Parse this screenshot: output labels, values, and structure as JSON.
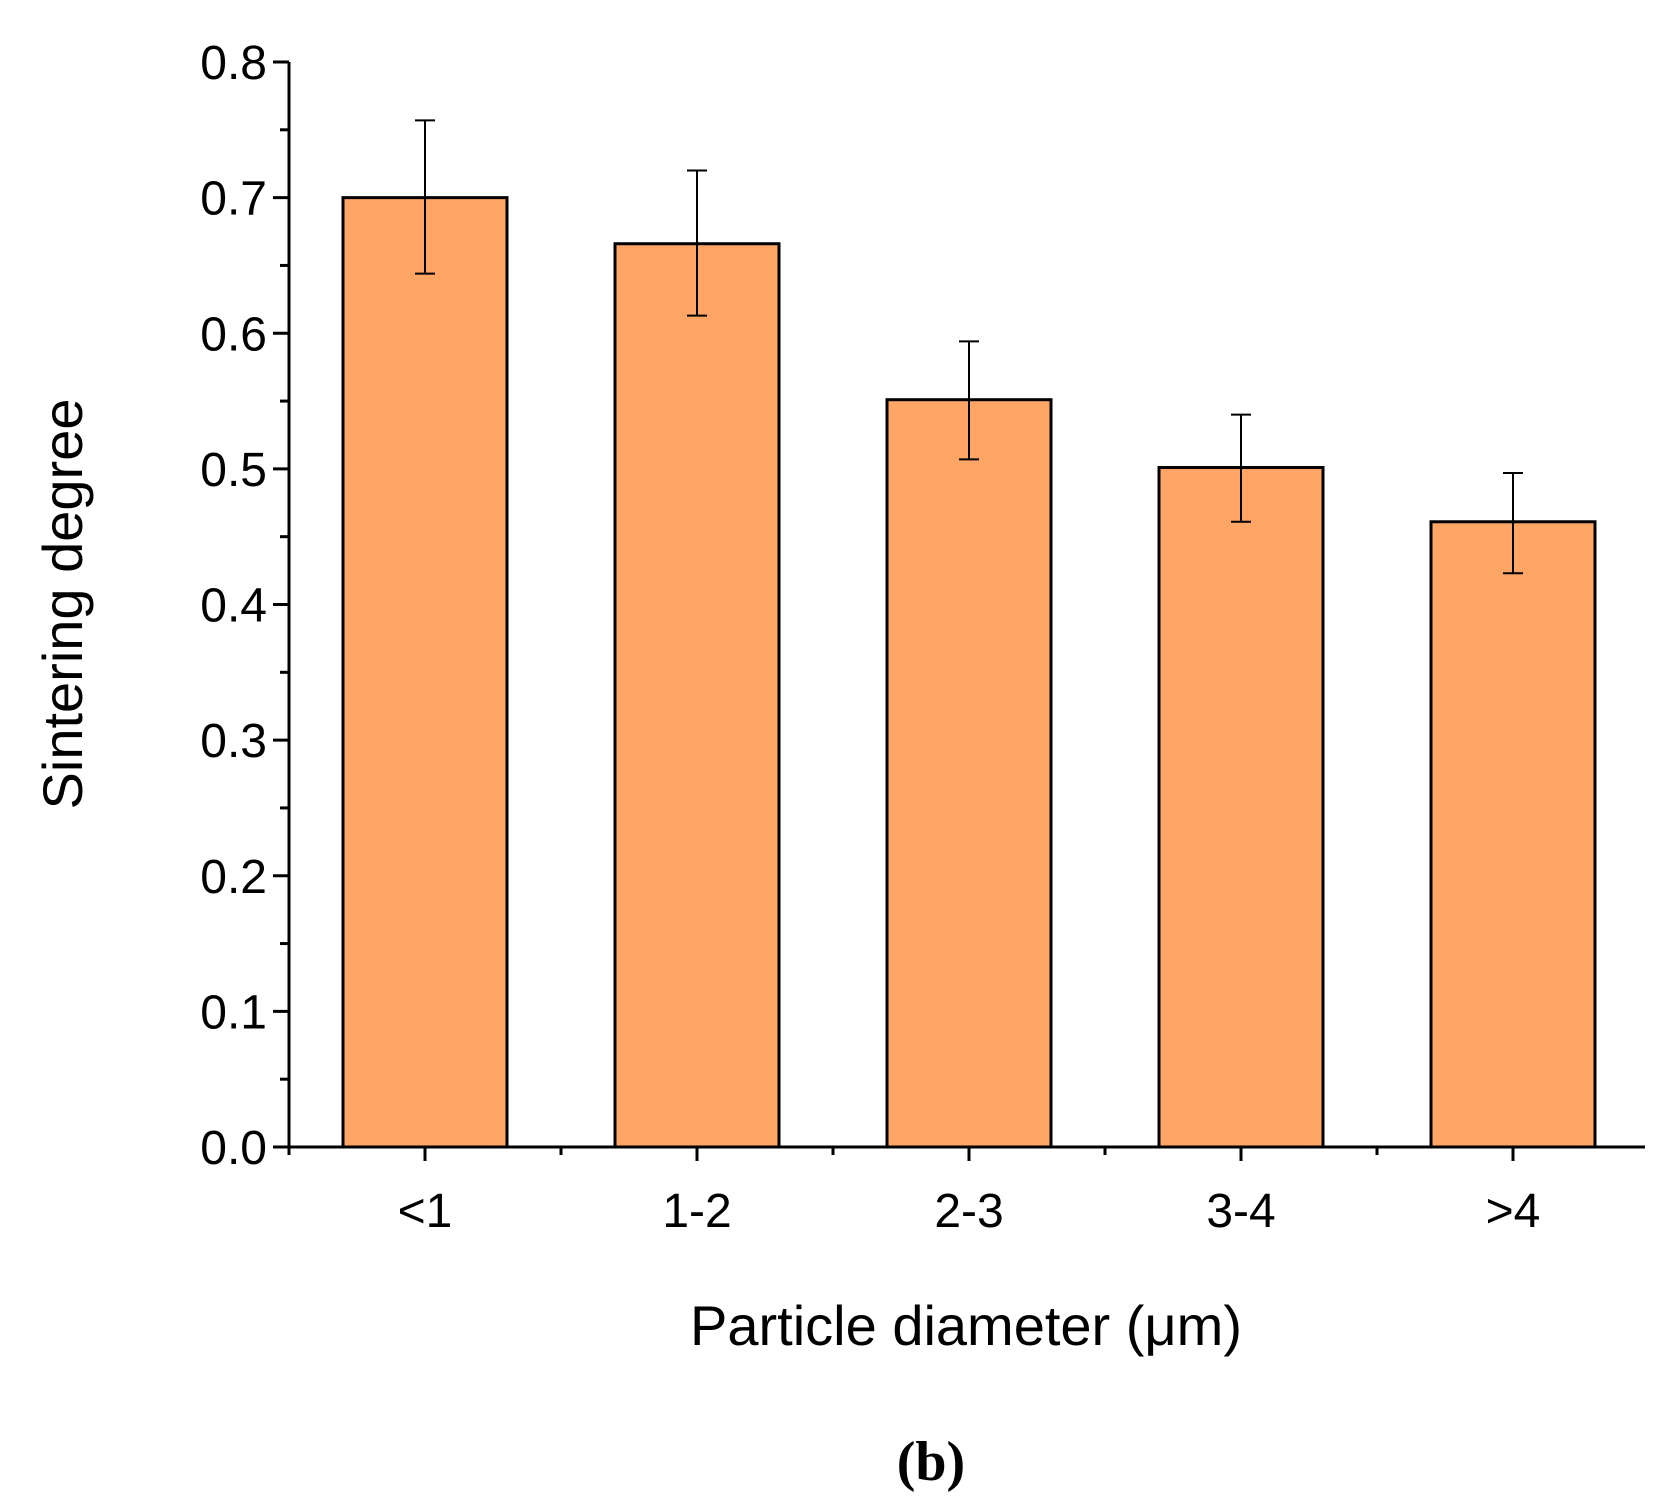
{
  "chart_data": {
    "type": "bar",
    "categories": [
      "<1",
      "1-2",
      "2-3",
      "3-4",
      ">4"
    ],
    "values": [
      0.7,
      0.666,
      0.551,
      0.501,
      0.461
    ],
    "error_upper": [
      0.757,
      0.72,
      0.594,
      0.54,
      0.497
    ],
    "error_lower": [
      0.644,
      0.613,
      0.507,
      0.461,
      0.423
    ],
    "xlabel": "Particle diameter (μm)",
    "ylabel": "Sintering degree",
    "ylim": [
      0.0,
      0.8
    ],
    "yticks": [
      "0.0",
      "0.1",
      "0.2",
      "0.3",
      "0.4",
      "0.5",
      "0.6",
      "0.7",
      "0.8"
    ],
    "grid": false,
    "bar_color": "#FFA566",
    "edge_color": "#000000"
  },
  "panel_label": "(b)"
}
